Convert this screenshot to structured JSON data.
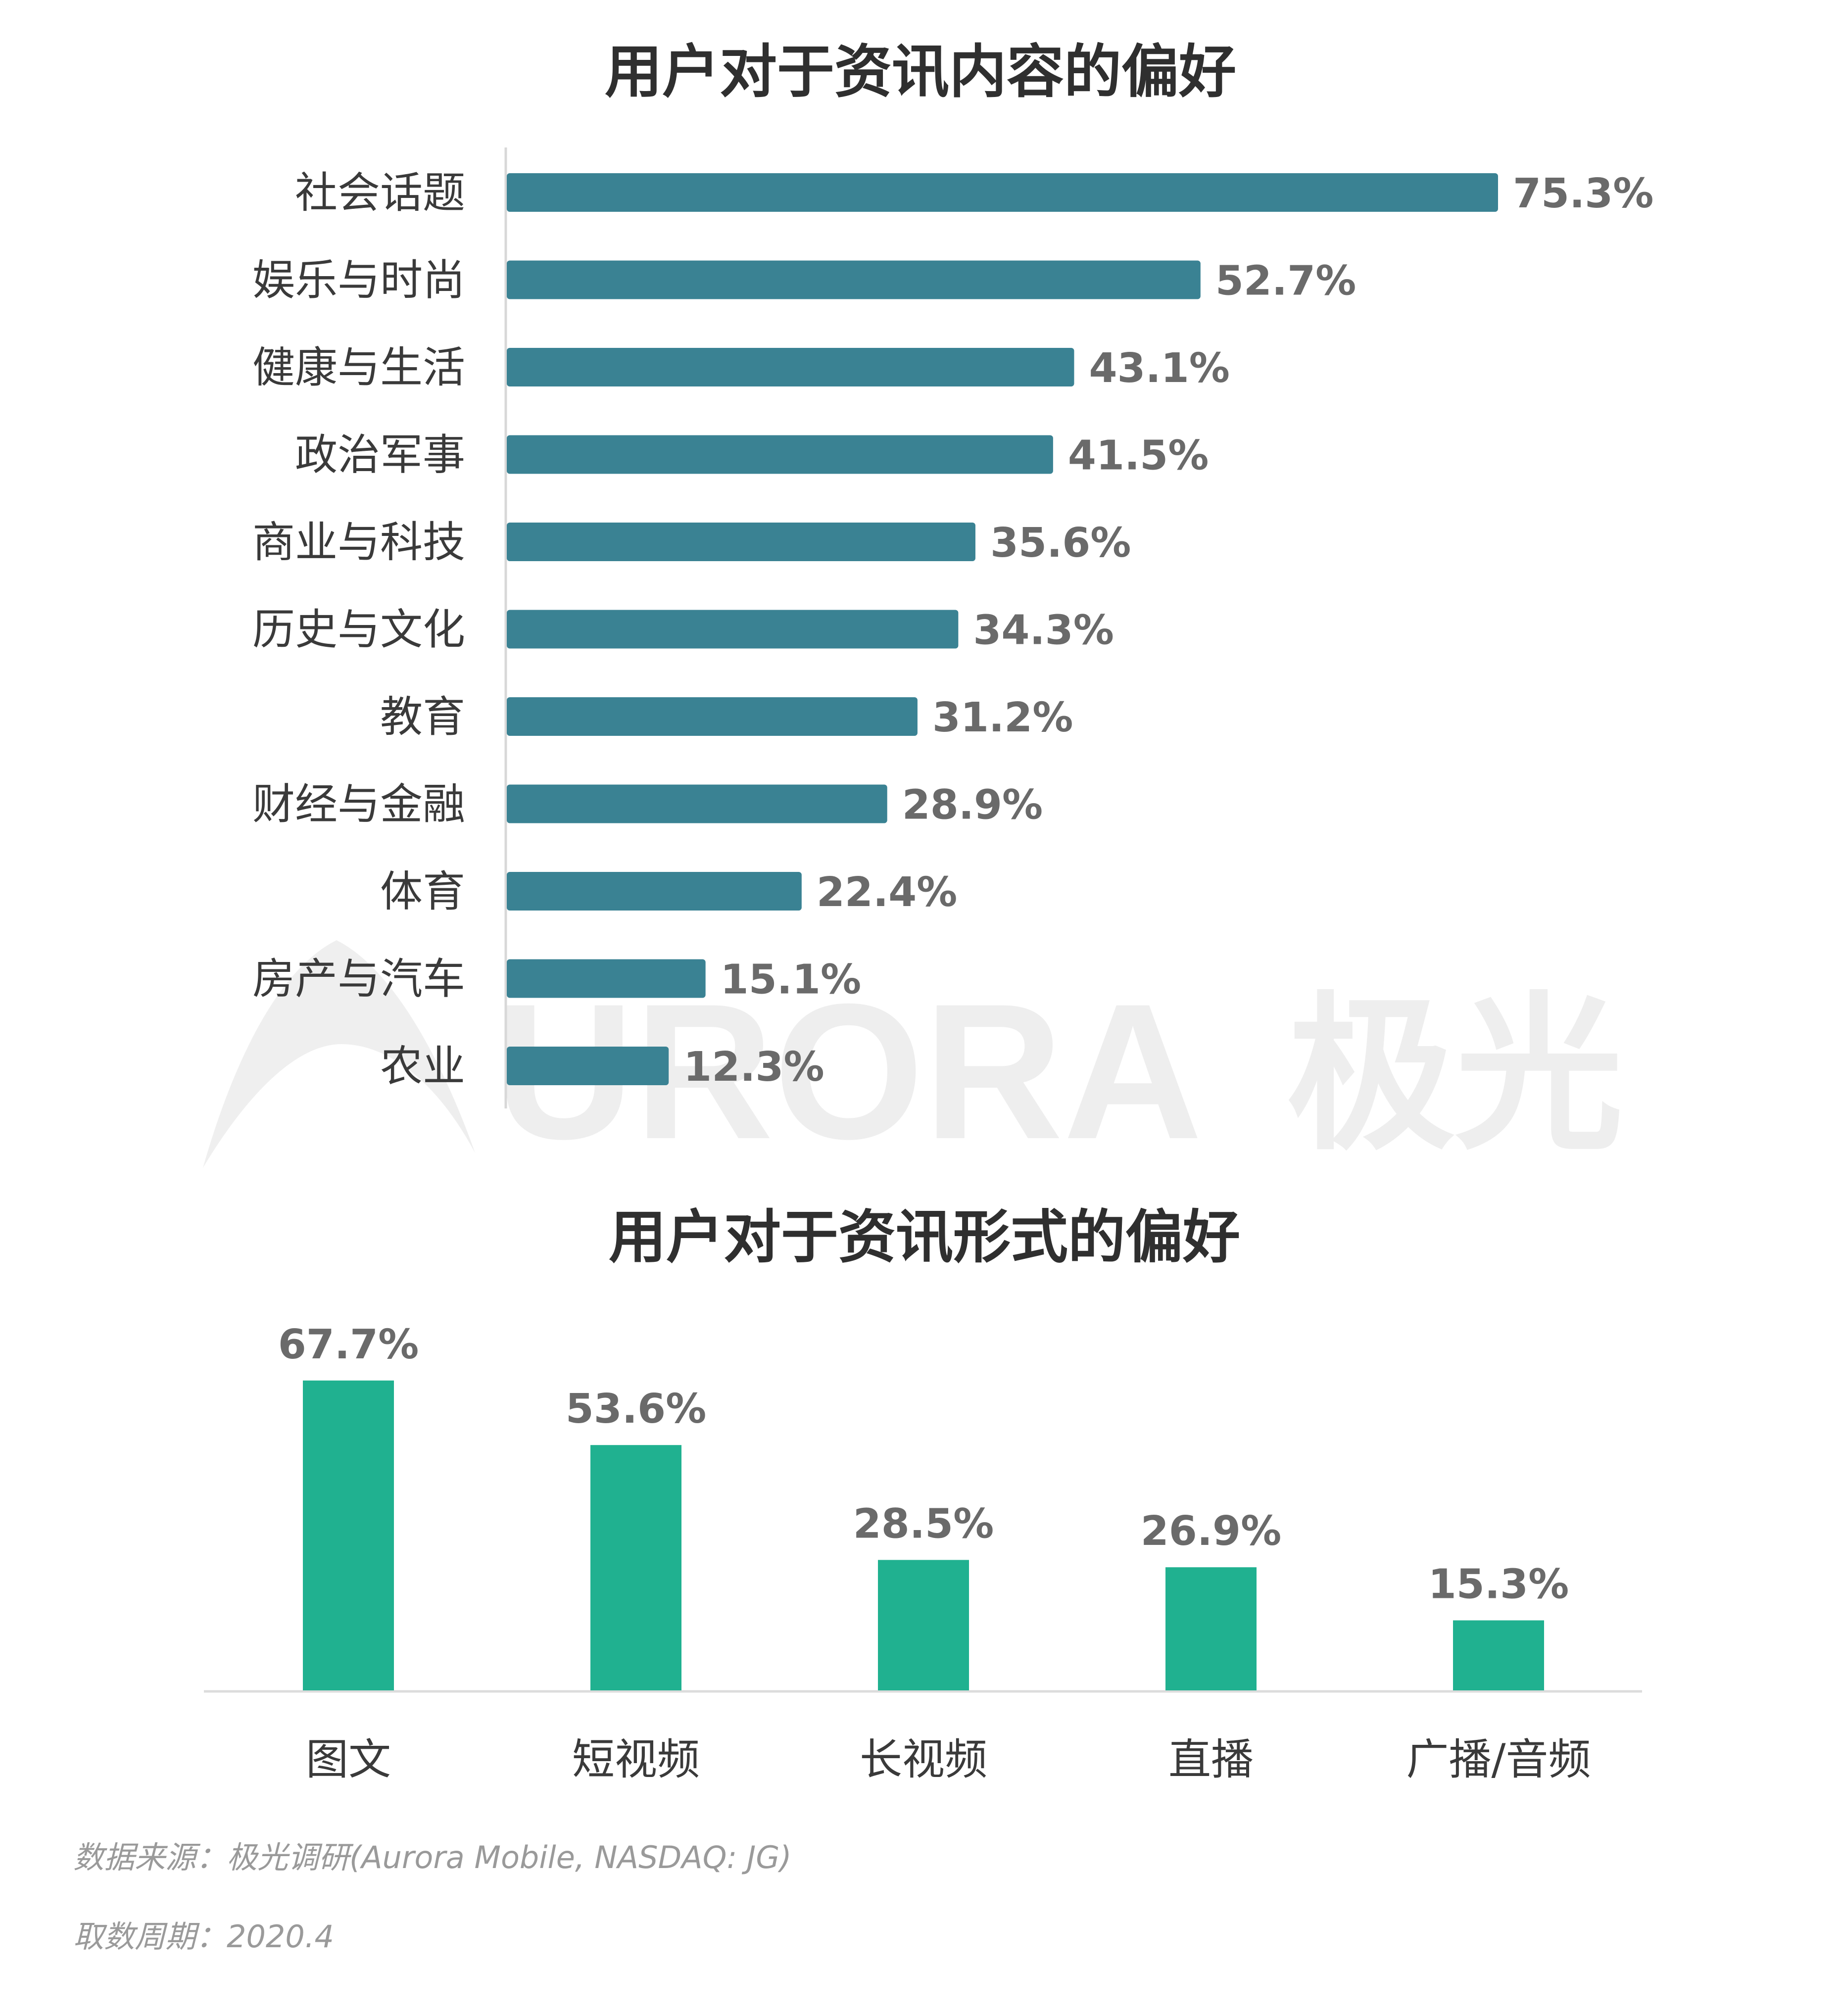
{
  "watermark": {
    "text": "URORA",
    "cn": "极光"
  },
  "chart_data": [
    {
      "type": "bar",
      "orientation": "horizontal",
      "title": "用户对于资讯内容的偏好",
      "categories": [
        "社会话题",
        "娱乐与时尚",
        "健康与生活",
        "政治军事",
        "商业与科技",
        "历史与文化",
        "教育",
        "财经与金融",
        "体育",
        "房产与汽车",
        "农业"
      ],
      "values": [
        75.3,
        52.7,
        43.1,
        41.5,
        35.6,
        34.3,
        31.2,
        28.9,
        22.4,
        15.1,
        12.3
      ],
      "labels": [
        "75.3%",
        "52.7%",
        "43.1%",
        "41.5%",
        "35.6%",
        "34.3%",
        "31.2%",
        "28.9%",
        "22.4%",
        "15.1%",
        "12.3%"
      ],
      "unit": "%",
      "xlim": [
        0,
        100
      ],
      "color": "#3a8293"
    },
    {
      "type": "bar",
      "orientation": "vertical",
      "title": "用户对于资讯形式的偏好",
      "categories": [
        "图文",
        "短视频",
        "长视频",
        "直播",
        "广播/音频"
      ],
      "values": [
        67.7,
        53.6,
        28.5,
        26.9,
        15.3
      ],
      "labels": [
        "67.7%",
        "53.6%",
        "28.5%",
        "26.9%",
        "15.3%"
      ],
      "unit": "%",
      "ylim": [
        0,
        70
      ],
      "color": "#20b190"
    }
  ],
  "footer": {
    "source": "数据来源：极光调研(Aurora Mobile, NASDAQ: JG)",
    "period": "取数周期：2020.4"
  }
}
